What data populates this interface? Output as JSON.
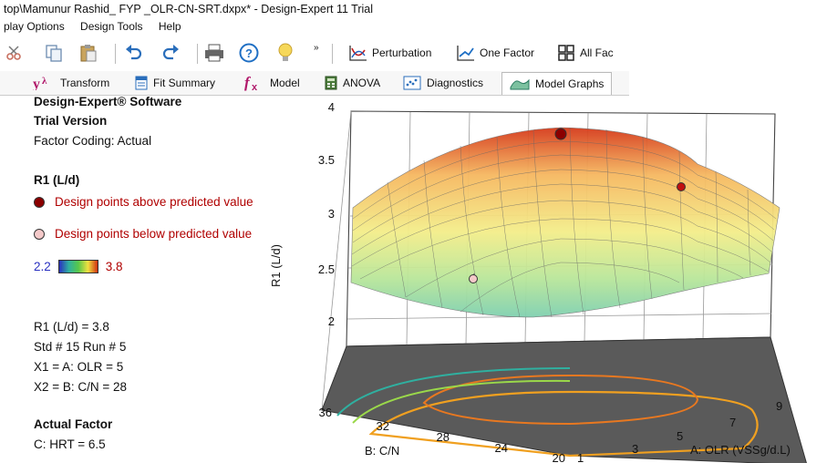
{
  "window": {
    "title": "top\\Mamunur Rashid_ FYP _OLR-CN-SRT.dxpx* - Design-Expert 11 Trial"
  },
  "menu": [
    "play Options",
    "Design Tools",
    "Help"
  ],
  "toolbar": {
    "perturbation_label": "Perturbation",
    "one_factor_label": "One Factor",
    "all_factors_label": "All Fac",
    "overflow_label": "»"
  },
  "tabs": [
    {
      "label": "Transform",
      "icon": "transform-icon"
    },
    {
      "label": "Fit Summary",
      "icon": "fit-summary-icon"
    },
    {
      "label": "Model",
      "icon": "fx-icon"
    },
    {
      "label": "ANOVA",
      "icon": "anova-icon"
    },
    {
      "label": "Diagnostics",
      "icon": "diagnostics-icon"
    },
    {
      "label": "Model Graphs",
      "icon": "model-graphs-icon"
    }
  ],
  "panel": {
    "software": "Design-Expert® Software",
    "trial": "Trial Version",
    "coding": "Factor Coding: Actual",
    "response": "R1 (L/d)",
    "legend_above": "Design points above predicted value",
    "legend_below": "Design points below predicted value",
    "scale_min": "2.2",
    "scale_max": "3.8",
    "point_r1": "R1 (L/d) = 3.8",
    "point_std": "Std # 15 Run # 5",
    "point_x1": "X1 = A: OLR = 5",
    "point_x2": "X2 = B: C/N = 28",
    "actual_factor_heading": "Actual Factor",
    "actual_factor": "C: HRT = 6.5",
    "colors": {
      "above": "#8b0000",
      "below": "#f4c9c9",
      "accent": "#b00000"
    }
  },
  "chart_data": {
    "type": "surface3d",
    "zlabel": "R1 (L/d)",
    "xlabel": "A: OLR (VSSg/d.L)",
    "ylabel": "B: C/N",
    "z_ticks": [
      "4",
      "3.5",
      "3",
      "2.5",
      "2"
    ],
    "x_ticks": [
      "1",
      "3",
      "5",
      "7",
      "9"
    ],
    "y_ticks": [
      "36",
      "32",
      "28",
      "24",
      "20"
    ],
    "zlim": [
      2,
      4
    ],
    "xlim": [
      1,
      9
    ],
    "ylim": [
      20,
      36
    ],
    "colorscale": [
      "#2a30c0",
      "#2fb0a0",
      "#58c84a",
      "#f0e040",
      "#d03010"
    ],
    "design_points": [
      {
        "A": 5,
        "B": 28,
        "R1": 3.8,
        "position": "above"
      },
      {
        "A": 8,
        "B": 24,
        "R1": 3.4,
        "position": "above"
      },
      {
        "A": 4,
        "B": 32,
        "R1": 2.55,
        "position": "below"
      }
    ]
  }
}
